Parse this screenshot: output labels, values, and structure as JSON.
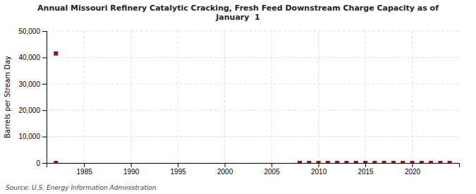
{
  "chart_data": {
    "type": "scatter",
    "title": "Annual Missouri Refinery Catalytic Cracking, Fresh Feed Downstream Charge Capacity as of\nJanuary  1",
    "ylabel": "Barrels per Stream Day",
    "annotations": [
      "Source: U.S. Energy Information Administration"
    ],
    "x": [
      1982,
      1982,
      2008,
      2009,
      2010,
      2011,
      2012,
      2013,
      2014,
      2015,
      2016,
      2017,
      2018,
      2019,
      2020,
      2021,
      2022,
      2023,
      2024
    ],
    "values": [
      41500,
      0,
      0,
      0,
      0,
      0,
      0,
      0,
      0,
      0,
      0,
      0,
      0,
      0,
      0,
      0,
      0,
      0,
      0
    ],
    "color": "#8b1a1a",
    "marker": "square",
    "xlim": [
      1981,
      2025
    ],
    "ylim": [
      0,
      50000
    ],
    "xticks": [
      1985,
      1990,
      1995,
      2000,
      2005,
      2010,
      2015,
      2020
    ],
    "yticks": [
      0,
      {
        "value": 10000,
        "label": "10,000"
      },
      {
        "value": 20000,
        "label": "20,000"
      },
      {
        "value": 30000,
        "label": "30,000"
      },
      {
        "value": 40000,
        "label": "40,000"
      },
      {
        "value": 50000,
        "label": "50,000"
      }
    ],
    "grid": true
  }
}
